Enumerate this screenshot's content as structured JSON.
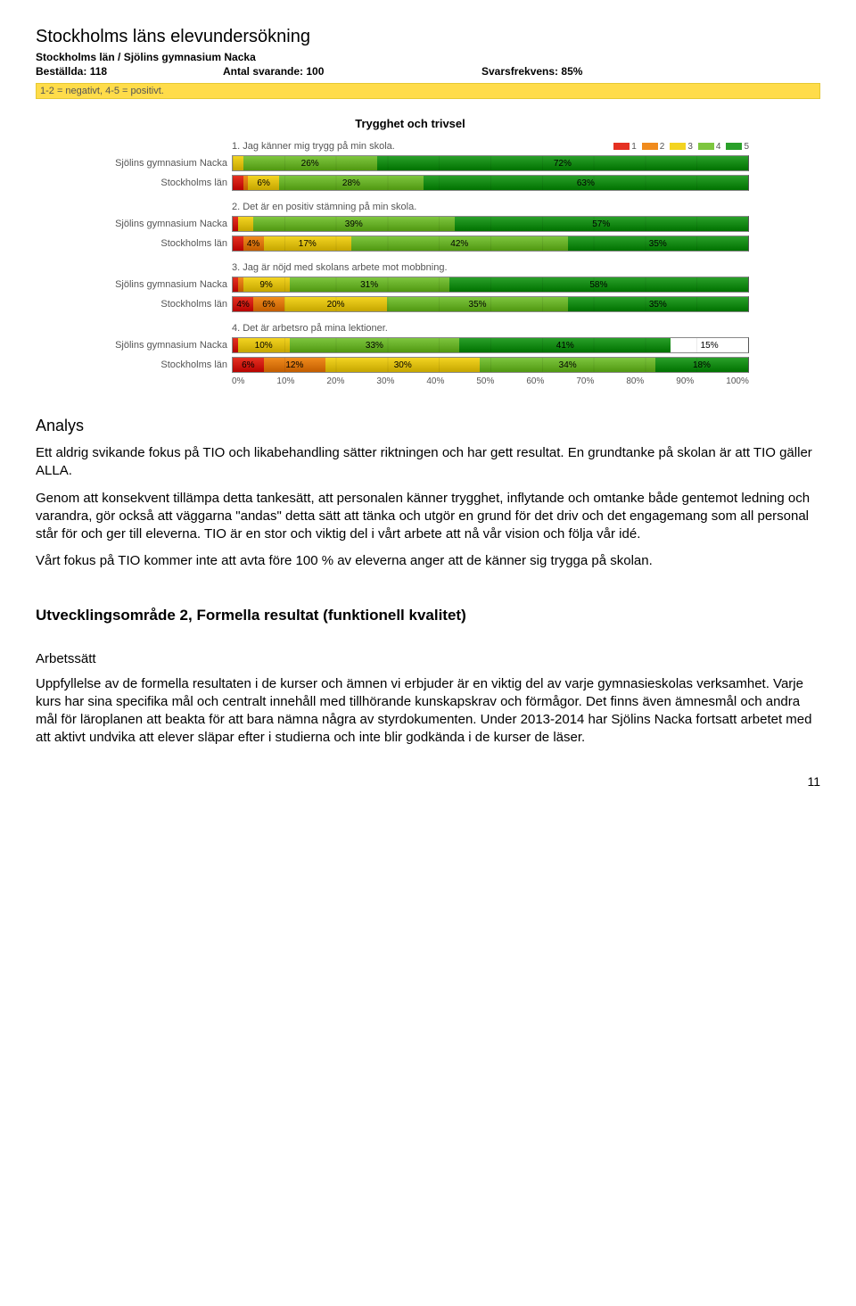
{
  "header": {
    "title": "Stockholms läns elevundersökning",
    "subtitle": "Stockholms län / Sjölins gymnasium Nacka",
    "meta": {
      "bestallda_label": "Beställda:",
      "bestallda_value": "118",
      "antal_label": "Antal svarande:",
      "antal_value": "100",
      "svars_label": "Svarsfrekvens:",
      "svars_value": "85%"
    },
    "yellow_note": "1-2 = negativt, 4-5 = positivt."
  },
  "chart": {
    "section_title": "Trygghet och trivsel",
    "legend": [
      {
        "label": "1",
        "color": "#e53122"
      },
      {
        "label": "2",
        "color": "#f08b1d"
      },
      {
        "label": "3",
        "color": "#f3d421"
      },
      {
        "label": "4",
        "color": "#7ec63f"
      },
      {
        "label": "5",
        "color": "#2aa02a"
      }
    ],
    "axis": [
      "0%",
      "10%",
      "20%",
      "30%",
      "40%",
      "50%",
      "60%",
      "70%",
      "80%",
      "90%",
      "100%"
    ],
    "row_labels": {
      "nacka": "Sjölins gymnasium Nacka",
      "lan": "Stockholms län"
    },
    "questions": [
      {
        "label": "1. Jag känner mig trygg på min skola.",
        "rows": [
          {
            "name": "nacka",
            "segments": [
              {
                "v": 0,
                "c": "#e53122",
                "t": ""
              },
              {
                "v": 0,
                "c": "#f08b1d",
                "t": ""
              },
              {
                "v": 2,
                "c": "#f3d421",
                "t": ""
              },
              {
                "v": 26,
                "c": "#7ec63f",
                "t": "26%"
              },
              {
                "v": 72,
                "c": "#2aa02a",
                "t": "72%"
              }
            ]
          },
          {
            "name": "lan",
            "segments": [
              {
                "v": 2,
                "c": "#e53122",
                "t": ""
              },
              {
                "v": 1,
                "c": "#f08b1d",
                "t": ""
              },
              {
                "v": 6,
                "c": "#f3d421",
                "t": "6%"
              },
              {
                "v": 28,
                "c": "#7ec63f",
                "t": "28%"
              },
              {
                "v": 63,
                "c": "#2aa02a",
                "t": "63%"
              }
            ]
          }
        ]
      },
      {
        "label": "2. Det är en positiv stämning på min skola.",
        "rows": [
          {
            "name": "nacka",
            "segments": [
              {
                "v": 1,
                "c": "#e53122",
                "t": ""
              },
              {
                "v": 0,
                "c": "#f08b1d",
                "t": ""
              },
              {
                "v": 3,
                "c": "#f3d421",
                "t": ""
              },
              {
                "v": 39,
                "c": "#7ec63f",
                "t": "39%"
              },
              {
                "v": 57,
                "c": "#2aa02a",
                "t": "57%"
              }
            ]
          },
          {
            "name": "lan",
            "segments": [
              {
                "v": 2,
                "c": "#e53122",
                "t": ""
              },
              {
                "v": 4,
                "c": "#f08b1d",
                "t": "4%"
              },
              {
                "v": 17,
                "c": "#f3d421",
                "t": "17%"
              },
              {
                "v": 42,
                "c": "#7ec63f",
                "t": "42%"
              },
              {
                "v": 35,
                "c": "#2aa02a",
                "t": "35%"
              }
            ]
          }
        ]
      },
      {
        "label": "3. Jag är nöjd med skolans arbete mot mobbning.",
        "rows": [
          {
            "name": "nacka",
            "segments": [
              {
                "v": 1,
                "c": "#e53122",
                "t": ""
              },
              {
                "v": 1,
                "c": "#f08b1d",
                "t": ""
              },
              {
                "v": 9,
                "c": "#f3d421",
                "t": "9%"
              },
              {
                "v": 31,
                "c": "#7ec63f",
                "t": "31%"
              },
              {
                "v": 58,
                "c": "#2aa02a",
                "t": "58%"
              }
            ]
          },
          {
            "name": "lan",
            "segments": [
              {
                "v": 4,
                "c": "#e53122",
                "t": "4%"
              },
              {
                "v": 6,
                "c": "#f08b1d",
                "t": "6%"
              },
              {
                "v": 20,
                "c": "#f3d421",
                "t": "20%"
              },
              {
                "v": 35,
                "c": "#7ec63f",
                "t": "35%"
              },
              {
                "v": 35,
                "c": "#2aa02a",
                "t": "35%"
              }
            ]
          }
        ]
      },
      {
        "label": "4. Det är arbetsro på mina lektioner.",
        "rows": [
          {
            "name": "nacka",
            "segments": [
              {
                "v": 1,
                "c": "#e53122",
                "t": ""
              },
              {
                "v": 0,
                "c": "#f08b1d",
                "t": ""
              },
              {
                "v": 10,
                "c": "#f3d421",
                "t": "10%"
              },
              {
                "v": 33,
                "c": "#7ec63f",
                "t": "33%"
              },
              {
                "v": 41,
                "c": "#2aa02a",
                "t": "41%"
              },
              {
                "v": 15,
                "c": "#ffffff",
                "t": "15%"
              }
            ]
          },
          {
            "name": "lan",
            "segments": [
              {
                "v": 6,
                "c": "#e53122",
                "t": "6%"
              },
              {
                "v": 12,
                "c": "#f08b1d",
                "t": "12%"
              },
              {
                "v": 30,
                "c": "#f3d421",
                "t": "30%"
              },
              {
                "v": 34,
                "c": "#7ec63f",
                "t": "34%"
              },
              {
                "v": 18,
                "c": "#2aa02a",
                "t": "18%"
              }
            ]
          }
        ]
      }
    ]
  },
  "text": {
    "analys_heading": "Analys",
    "p1": "Ett aldrig svikande fokus på TIO och likabehandling sätter riktningen och har gett resultat. En grundtanke på skolan är att TIO gäller ALLA.",
    "p2": "Genom att konsekvent tillämpa detta tankesätt, att personalen känner trygghet, inflytande och omtanke både gentemot ledning och varandra, gör också att väggarna \"andas\" detta sätt att tänka och utgör en grund för det driv och det engagemang som all personal står för och ger till eleverna. TIO är en stor och viktig del i vårt arbete att nå vår vision och följa vår idé.",
    "p3": "Vårt fokus på TIO kommer inte att avta före 100 % av eleverna anger att de känner sig trygga på skolan.",
    "h2": "Utvecklingsområde 2, Formella resultat (funktionell kvalitet)",
    "arbetssatt_label": "Arbetssätt",
    "p4": "Uppfyllelse av de formella resultaten i de kurser och ämnen vi erbjuder är en viktig del av varje gymnasieskolas verksamhet. Varje kurs har sina specifika mål och centralt innehåll med tillhörande kunskapskrav och förmågor. Det finns även ämnesmål och andra mål för läroplanen att beakta för att bara nämna några av styrdokumenten. Under 2013-2014 har Sjölins Nacka fortsatt arbetet med att aktivt undvika att elever släpar efter i studierna och inte blir godkända i de kurser de läser.",
    "pagenum": "11"
  }
}
